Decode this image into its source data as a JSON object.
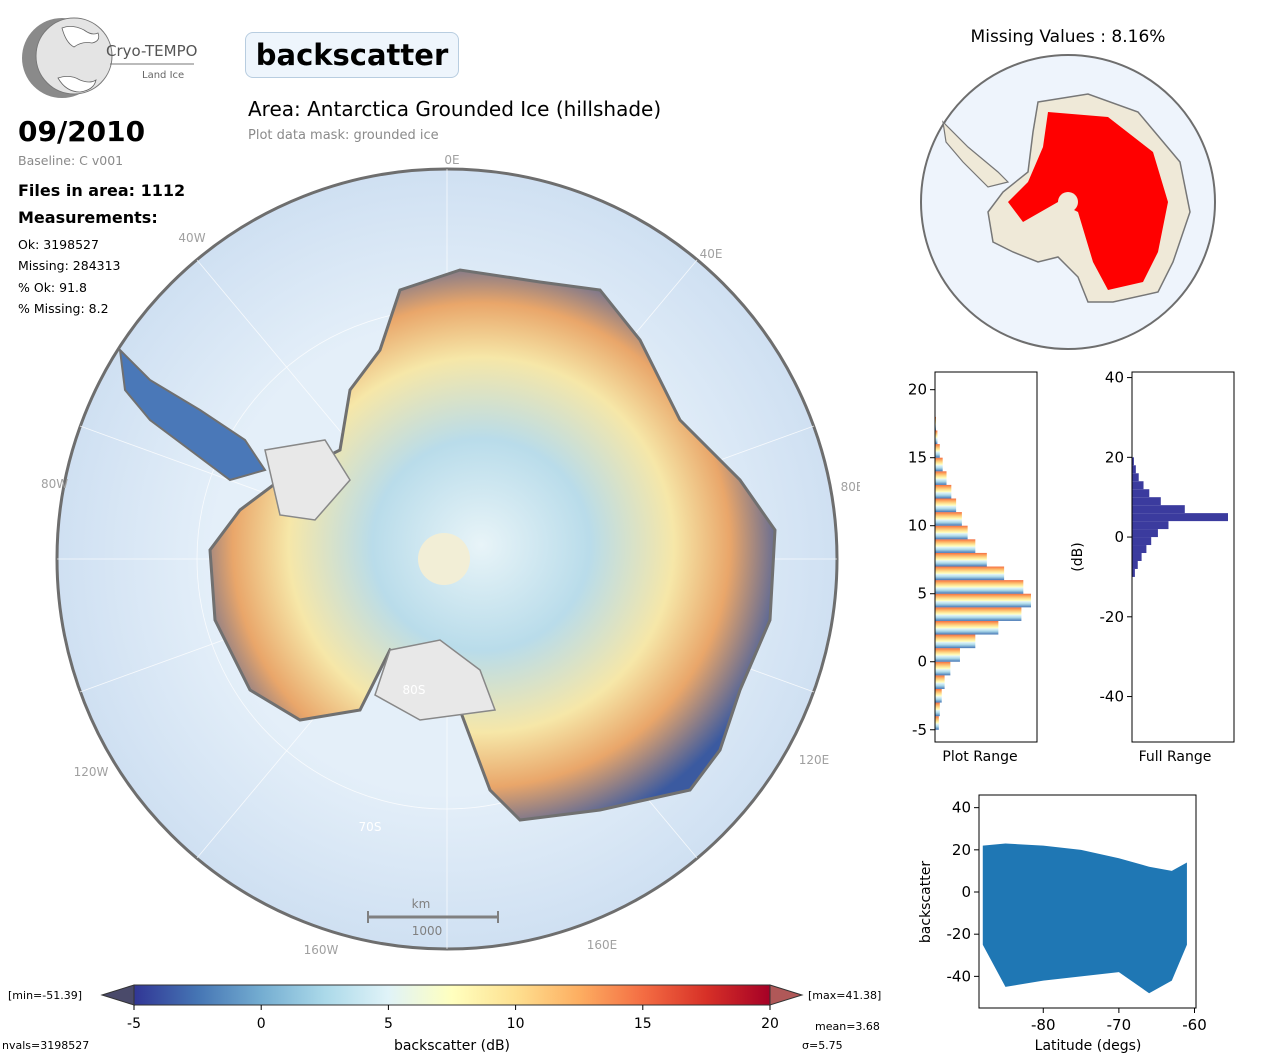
{
  "logo": {
    "name": "Cryo-TEMPO",
    "subtitle": "Land Ice"
  },
  "parameter": "backscatter",
  "area_title": "Area: Antarctica Grounded Ice (hillshade)",
  "mask_note": "Plot data mask: grounded ice",
  "date": "09/2010",
  "baseline": "Baseline: C v001",
  "files": "Files in area: 1112",
  "measurements_title": "Measurements:",
  "stats": {
    "ok": "Ok: 3198527",
    "missing": "Missing: 284313",
    "pct_ok": "% Ok: 91.8",
    "pct_missing": "% Missing: 8.2"
  },
  "missing_title": "Missing Values : 8.16%",
  "map": {
    "longitude_labels": [
      "0E",
      "40E",
      "80E",
      "120E",
      "160E",
      "160W",
      "120W",
      "80W",
      "40W"
    ],
    "latitude_labels": [
      "80S",
      "70S"
    ],
    "scale_bar": {
      "unit": "km",
      "value": "1000"
    }
  },
  "colorbar": {
    "min_label": "[min=-51.39]",
    "max_label": "[max=41.38]",
    "ticks": [
      "-5",
      "0",
      "5",
      "10",
      "15",
      "20"
    ],
    "label": "backscatter (dB)",
    "nvals": "nvals=3198527",
    "mean": "mean=3.68",
    "sigma": "σ=5.75",
    "colors": [
      "#313695",
      "#4575b4",
      "#74add1",
      "#abd9e9",
      "#e0f3f8",
      "#ffffbf",
      "#fee090",
      "#fdae61",
      "#f46d43",
      "#d73027",
      "#a50026"
    ]
  },
  "colors": {
    "missing": "#ff0000",
    "hist_full": "#3b3b9e",
    "scatter": "#1f77b4",
    "ocean": "#d6e6f5",
    "fill_value": "#f2eed6"
  },
  "chart_data": [
    {
      "type": "bar",
      "title": "Plot Range",
      "orientation": "horizontal",
      "ylim": [
        -5.9,
        21.3
      ],
      "yticks": [
        "20",
        "15",
        "10",
        "5",
        "0",
        "-5"
      ],
      "bins": [
        -5,
        -4,
        -3,
        -2,
        -1,
        0,
        1,
        2,
        3,
        4,
        5,
        6,
        7,
        8,
        9,
        10,
        11,
        12,
        13,
        14,
        15,
        16,
        17
      ],
      "counts": [
        0.04,
        0.05,
        0.07,
        0.1,
        0.16,
        0.26,
        0.42,
        0.66,
        0.9,
        1.0,
        0.92,
        0.72,
        0.54,
        0.42,
        0.34,
        0.28,
        0.22,
        0.17,
        0.12,
        0.08,
        0.05,
        0.025,
        0.01
      ]
    },
    {
      "type": "bar",
      "title": "Full Range",
      "ylabel": "(dB)",
      "orientation": "horizontal",
      "ylim": [
        -51.4,
        41.4
      ],
      "yticks": [
        "40",
        "20",
        "0",
        "-20",
        "-40"
      ],
      "bins": [
        -10,
        -8,
        -6,
        -4,
        -2,
        0,
        2,
        4,
        6,
        8,
        10,
        12,
        14,
        16,
        18
      ],
      "counts": [
        0.03,
        0.06,
        0.1,
        0.15,
        0.2,
        0.27,
        0.38,
        1.0,
        0.55,
        0.3,
        0.18,
        0.12,
        0.07,
        0.04,
        0.02
      ]
    },
    {
      "type": "scatter",
      "xlabel": "Latitude (degs)",
      "ylabel": "backscatter",
      "xlim": [
        -88.5,
        -59.8
      ],
      "ylim": [
        -55,
        46
      ],
      "xticks": [
        "-80",
        "-70",
        "-60"
      ],
      "yticks": [
        "40",
        "20",
        "0",
        "-20",
        "-40"
      ],
      "envelope": [
        {
          "lat": -88,
          "min": -25,
          "max": 22
        },
        {
          "lat": -85,
          "min": -45,
          "max": 23
        },
        {
          "lat": -80,
          "min": -42,
          "max": 22
        },
        {
          "lat": -75,
          "min": -40,
          "max": 20
        },
        {
          "lat": -70,
          "min": -38,
          "max": 16
        },
        {
          "lat": -66,
          "min": -48,
          "max": 12
        },
        {
          "lat": -63,
          "min": -42,
          "max": 10
        },
        {
          "lat": -61,
          "min": -25,
          "max": 14
        }
      ]
    }
  ]
}
